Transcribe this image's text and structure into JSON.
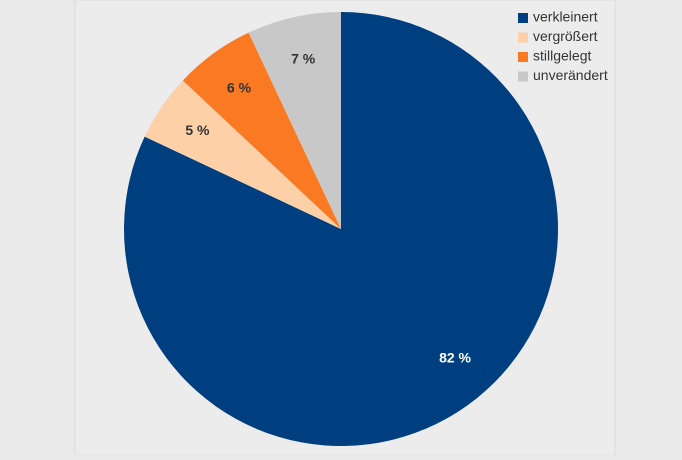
{
  "chart_data": {
    "type": "pie",
    "categories": [
      "verkleinert",
      "vergrößert",
      "stillgelegt",
      "unverändert"
    ],
    "values": [
      82,
      5,
      6,
      7
    ],
    "value_labels": [
      "82 %",
      "5 %",
      "6 %",
      "7 %"
    ],
    "colors": [
      "#003f7f",
      "#fdd0a8",
      "#f97a22",
      "#c8c8c8"
    ],
    "legend": "top-right"
  }
}
